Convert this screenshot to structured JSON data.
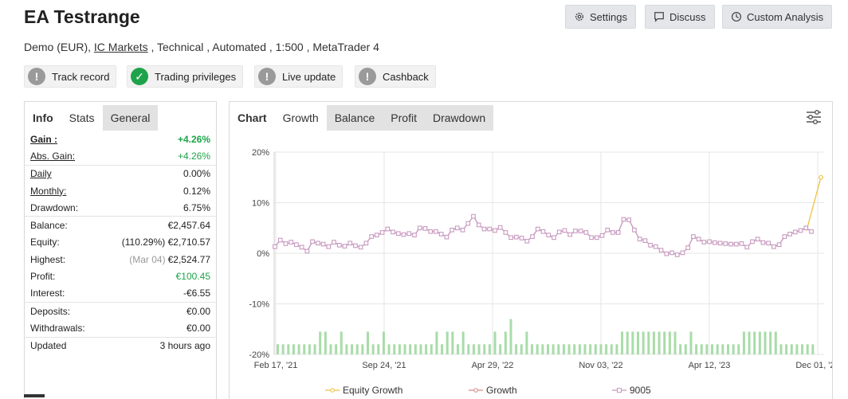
{
  "header": {
    "title": "EA Testrange",
    "subtitle_pre": "Demo (EUR), ",
    "subtitle_link": "IC Markets",
    "subtitle_post": " , Technical , Automated , 1:500 , MetaTrader 4",
    "buttons": {
      "settings": "Settings",
      "discuss": "Discuss",
      "custom_analysis": "Custom Analysis"
    }
  },
  "badges": [
    {
      "label": "Track record",
      "status": "unverified",
      "icon": "exclamation-icon"
    },
    {
      "label": "Trading privileges",
      "status": "verified",
      "icon": "check-icon"
    },
    {
      "label": "Live update",
      "status": "unverified",
      "icon": "exclamation-icon"
    },
    {
      "label": "Cashback",
      "status": "unverified",
      "icon": "exclamation-icon"
    }
  ],
  "left_tabs": {
    "info": "Info",
    "stats": "Stats",
    "general": "General"
  },
  "stats": {
    "gain": {
      "label": "Gain :",
      "value": "+4.26%"
    },
    "abs_gain": {
      "label": "Abs. Gain:",
      "value": "+4.26%"
    },
    "daily": {
      "label": "Daily",
      "value": "0.00%"
    },
    "monthly": {
      "label": "Monthly:",
      "value": "0.12%"
    },
    "drawdown": {
      "label": "Drawdown:",
      "value": "6.75%"
    },
    "balance": {
      "label": "Balance:",
      "value": "€2,457.64"
    },
    "equity": {
      "label": "Equity:",
      "note": "(110.29%)",
      "value": "€2,710.57"
    },
    "highest": {
      "label": "Highest:",
      "note": "(Mar 04)",
      "value": "€2,524.77"
    },
    "profit": {
      "label": "Profit:",
      "value": "€100.45"
    },
    "interest": {
      "label": "Interest:",
      "value": "-€6.55"
    },
    "deposits": {
      "label": "Deposits:",
      "value": "€0.00"
    },
    "withdrawals": {
      "label": "Withdrawals:",
      "value": "€0.00"
    },
    "updated": {
      "label": "Updated",
      "value": "3 hours ago"
    }
  },
  "chart_tabs": {
    "chart": "Chart",
    "growth": "Growth",
    "balance": "Balance",
    "profit": "Profit",
    "drawdown": "Drawdown"
  },
  "colors": {
    "growth": "#d88a8a",
    "pink_line": "#c89ac0",
    "equity": "#f0c040",
    "bars": "#a8dca8",
    "positive": "#1ea34a"
  },
  "chart_data": {
    "type": "line",
    "y_ticks": [
      "20%",
      "10%",
      "0%",
      "-10%",
      "-20%"
    ],
    "ylim": [
      -20,
      20
    ],
    "x_ticks": [
      "Feb 17, '21",
      "Sep 24, '21",
      "Apr 29, '22",
      "Nov 03, '22",
      "Apr 12, '23",
      "Dec 01, '23"
    ],
    "series": [
      {
        "name": "Equity Growth",
        "color": "#f0c040",
        "tail": [
          4.5,
          15
        ]
      },
      {
        "name": "Growth",
        "color": "#d88a8a"
      },
      {
        "name": "9005",
        "color": "#c89ac0",
        "values": [
          1.3,
          2.6,
          1.9,
          2.2,
          1.7,
          1.2,
          0.4,
          2.3,
          2.0,
          1.8,
          1.3,
          2.2,
          1.6,
          1.4,
          2.0,
          1.5,
          1.2,
          2.0,
          3.3,
          3.6,
          4.1,
          4.8,
          4.2,
          3.9,
          3.7,
          3.9,
          3.6,
          5.0,
          4.9,
          4.3,
          4.3,
          3.8,
          3.2,
          4.6,
          5.0,
          4.6,
          5.9,
          7.3,
          5.6,
          4.8,
          4.8,
          4.5,
          5.1,
          4.1,
          3.1,
          3.2,
          3.0,
          2.4,
          3.3,
          4.8,
          4.3,
          3.6,
          3.1,
          4.2,
          4.5,
          3.7,
          4.4,
          4.4,
          4.1,
          3.1,
          3.1,
          3.5,
          4.6,
          4.1,
          4.1,
          6.7,
          6.6,
          4.6,
          2.8,
          2.5,
          1.6,
          1.3,
          0.6,
          -0.1,
          0.1,
          -0.3,
          0.1,
          1.1,
          3.3,
          2.8,
          2.2,
          2.3,
          2.1,
          2.0,
          1.9,
          1.8,
          1.8,
          1.9,
          1.2,
          2.3,
          2.8,
          2.1,
          2.0,
          1.3,
          1.7,
          3.3,
          3.8,
          4.2,
          4.5,
          5.0,
          4.3
        ]
      },
      {
        "name": "bars",
        "values": [
          -18,
          -18,
          -18,
          -18,
          -18,
          -18,
          -18,
          -18,
          -15.5,
          -15.5,
          -18,
          -18,
          -15.5,
          -18,
          -18,
          -18,
          -18,
          -15.5,
          -18,
          -18,
          -15.5,
          -18,
          -18,
          -18,
          -18,
          -18,
          -18,
          -18,
          -18,
          -18,
          -15.5,
          -18,
          -15.5,
          -15.5,
          -18,
          -15.5,
          -18,
          -18,
          -18,
          -18,
          -18,
          -15.5,
          -18,
          -15.5,
          -13,
          -18,
          -18,
          -15.5,
          -18,
          -18,
          -18,
          -18,
          -18,
          -18,
          -18,
          -18,
          -18,
          -18,
          -18,
          -18,
          -18,
          -18,
          -18,
          -18,
          -18,
          -15.5,
          -15.5,
          -15.5,
          -15.5,
          -15.5,
          -15.5,
          -15.5,
          -15.5,
          -15.5,
          -15.5,
          -15.5,
          -18,
          -18,
          -15.5,
          -18,
          -18,
          -18,
          -18,
          -18,
          -18,
          -18,
          -18,
          -18,
          -15.5,
          -15.5,
          -15.5,
          -15.5,
          -15.5,
          -15.5,
          -15.5,
          -18,
          -18,
          -18,
          -18,
          -18,
          -18,
          -18
        ]
      }
    ]
  }
}
